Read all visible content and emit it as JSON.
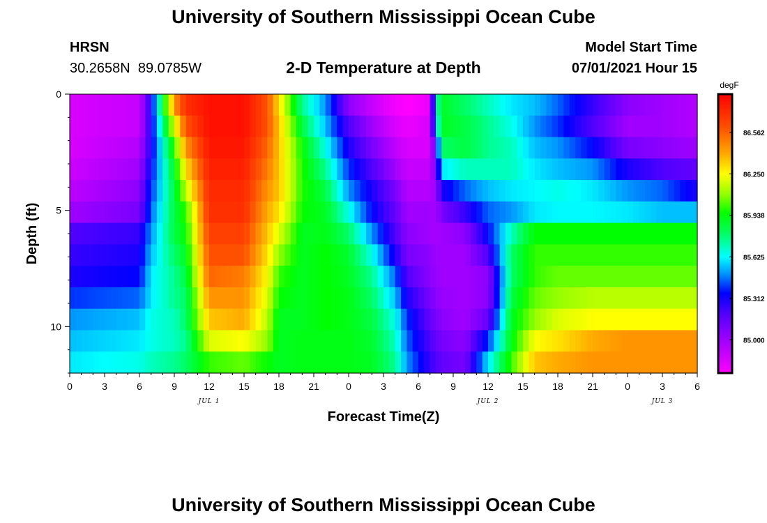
{
  "header": {
    "title_top": "University of Southern Mississippi Ocean Cube",
    "station": "HRSN",
    "coords": "30.2658N  89.0785W",
    "chart_title": "2-D Temperature at Depth",
    "model_label": "Model Start Time",
    "model_time": "07/01/2021 Hour 15",
    "title_bottom": "University of Southern Mississippi Ocean Cube"
  },
  "chart_data": {
    "type": "heatmap",
    "title": "2-D Temperature at Depth",
    "xlabel": "Forecast Time(Z)",
    "ylabel": "Depth (ft)",
    "x_range_hours": [
      0,
      54
    ],
    "y_range_ft": [
      0,
      12
    ],
    "x_ticks": [
      {
        "h": 0,
        "label": "0"
      },
      {
        "h": 3,
        "label": "3"
      },
      {
        "h": 6,
        "label": "6"
      },
      {
        "h": 9,
        "label": "9"
      },
      {
        "h": 12,
        "label": "12"
      },
      {
        "h": 15,
        "label": "15"
      },
      {
        "h": 18,
        "label": "18"
      },
      {
        "h": 21,
        "label": "21"
      },
      {
        "h": 24,
        "label": "0"
      },
      {
        "h": 27,
        "label": "3"
      },
      {
        "h": 30,
        "label": "6"
      },
      {
        "h": 33,
        "label": "9"
      },
      {
        "h": 36,
        "label": "12"
      },
      {
        "h": 39,
        "label": "15"
      },
      {
        "h": 42,
        "label": "18"
      },
      {
        "h": 45,
        "label": "21"
      },
      {
        "h": 48,
        "label": "0"
      },
      {
        "h": 51,
        "label": "3"
      },
      {
        "h": 54,
        "label": "6"
      }
    ],
    "date_labels": [
      {
        "h": 12,
        "label": "JUL 1"
      },
      {
        "h": 36,
        "label": "JUL 2"
      },
      {
        "h": 51,
        "label": "JUL 3"
      }
    ],
    "y_ticks": [
      {
        "v": 0,
        "label": "0"
      },
      {
        "v": 5,
        "label": "5"
      },
      {
        "v": 10,
        "label": "10"
      }
    ],
    "depths": [
      0,
      1,
      2,
      3,
      4,
      5,
      6,
      7,
      8,
      9,
      10,
      11,
      12
    ],
    "profiles": [
      {
        "h": 0,
        "t": [
          84.85,
          84.85,
          84.85,
          84.88,
          84.92,
          85.0,
          85.2,
          85.25,
          85.3,
          85.4,
          85.5,
          85.55,
          85.6
        ]
      },
      {
        "h": 6,
        "t": [
          84.9,
          84.9,
          84.95,
          85.0,
          85.05,
          85.1,
          85.25,
          85.3,
          85.35,
          85.45,
          85.55,
          85.6,
          85.65
        ]
      },
      {
        "h": 7,
        "t": [
          85.3,
          85.3,
          85.3,
          85.35,
          85.4,
          85.45,
          85.5,
          85.55,
          85.6,
          85.6,
          85.65,
          85.65,
          85.7
        ]
      },
      {
        "h": 9,
        "t": [
          86.45,
          86.2,
          86.0,
          85.9,
          85.85,
          85.85,
          85.85,
          85.8,
          85.75,
          85.75,
          85.7,
          85.7,
          85.75
        ]
      },
      {
        "h": 10,
        "t": [
          86.7,
          86.6,
          86.45,
          86.3,
          86.15,
          86.0,
          85.95,
          85.9,
          85.85,
          85.8,
          85.8,
          85.75,
          85.8
        ]
      },
      {
        "h": 12,
        "t": [
          86.8,
          86.8,
          86.78,
          86.75,
          86.72,
          86.7,
          86.65,
          86.6,
          86.55,
          86.45,
          86.35,
          86.2,
          86.0
        ]
      },
      {
        "h": 15,
        "t": [
          86.8,
          86.8,
          86.78,
          86.75,
          86.72,
          86.7,
          86.65,
          86.6,
          86.5,
          86.45,
          86.4,
          86.25,
          86.05
        ]
      },
      {
        "h": 17,
        "t": [
          86.6,
          86.6,
          86.55,
          86.5,
          86.45,
          86.4,
          86.35,
          86.3,
          86.25,
          86.2,
          86.15,
          86.1,
          85.95
        ]
      },
      {
        "h": 18,
        "t": [
          86.3,
          86.35,
          86.35,
          86.35,
          86.35,
          86.3,
          86.2,
          86.1,
          86.0,
          85.95,
          85.9,
          85.9,
          85.9
        ]
      },
      {
        "h": 20,
        "t": [
          85.75,
          85.85,
          85.95,
          85.98,
          85.98,
          85.95,
          85.9,
          85.9,
          85.9,
          85.9,
          85.9,
          85.92,
          85.92
        ]
      },
      {
        "h": 22,
        "t": [
          85.5,
          85.55,
          85.65,
          85.75,
          85.85,
          85.9,
          85.92,
          85.95,
          85.95,
          85.95,
          85.95,
          85.92,
          85.92
        ]
      },
      {
        "h": 24,
        "t": [
          85.05,
          85.2,
          85.3,
          85.4,
          85.5,
          85.65,
          85.8,
          85.88,
          85.9,
          85.92,
          85.92,
          85.92,
          85.92
        ]
      },
      {
        "h": 26,
        "t": [
          84.9,
          85.0,
          85.1,
          85.2,
          85.3,
          85.35,
          85.5,
          85.65,
          85.75,
          85.8,
          85.85,
          85.88,
          85.9
        ]
      },
      {
        "h": 28,
        "t": [
          84.78,
          84.85,
          84.92,
          85.0,
          85.1,
          85.15,
          85.2,
          85.3,
          85.45,
          85.55,
          85.65,
          85.7,
          85.75
        ]
      },
      {
        "h": 29,
        "t": [
          84.75,
          84.8,
          84.85,
          84.9,
          84.95,
          85.0,
          85.05,
          85.1,
          85.2,
          85.3,
          85.4,
          85.45,
          85.5
        ]
      },
      {
        "h": 31,
        "t": [
          84.8,
          84.85,
          84.85,
          84.9,
          84.95,
          85.0,
          85.0,
          85.05,
          85.05,
          85.1,
          85.15,
          85.2,
          85.25
        ]
      },
      {
        "h": 31.5,
        "t": [
          85.65,
          85.55,
          85.2,
          85.1,
          85.0,
          84.98,
          84.98,
          85.0,
          85.02,
          85.05,
          85.1,
          85.15,
          85.2
        ]
      },
      {
        "h": 32,
        "t": [
          85.9,
          85.9,
          85.8,
          85.6,
          85.3,
          85.1,
          85.0,
          85.0,
          85.0,
          85.02,
          85.05,
          85.1,
          85.15
        ]
      },
      {
        "h": 34,
        "t": [
          85.8,
          85.85,
          85.85,
          85.7,
          85.45,
          85.25,
          85.05,
          85.0,
          85.0,
          85.0,
          85.0,
          85.05,
          85.1
        ]
      },
      {
        "h": 36,
        "t": [
          85.7,
          85.75,
          85.75,
          85.7,
          85.55,
          85.45,
          85.35,
          85.2,
          85.05,
          85.05,
          85.15,
          85.4,
          85.6
        ]
      },
      {
        "h": 38,
        "t": [
          85.6,
          85.65,
          85.7,
          85.7,
          85.6,
          85.5,
          85.7,
          85.8,
          85.8,
          85.85,
          85.9,
          85.92,
          86.0
        ]
      },
      {
        "h": 40,
        "t": [
          85.55,
          85.5,
          85.55,
          85.6,
          85.62,
          85.6,
          85.95,
          86.0,
          86.0,
          86.05,
          86.1,
          86.25,
          86.35
        ]
      },
      {
        "h": 42,
        "t": [
          85.45,
          85.4,
          85.5,
          85.55,
          85.65,
          85.62,
          85.95,
          86.0,
          86.05,
          86.1,
          86.2,
          86.3,
          86.4
        ]
      },
      {
        "h": 45,
        "t": [
          85.25,
          85.2,
          85.35,
          85.5,
          85.6,
          85.62,
          85.95,
          86.0,
          86.05,
          86.15,
          86.25,
          86.4,
          86.45
        ]
      },
      {
        "h": 48,
        "t": [
          85.05,
          85.0,
          85.1,
          85.3,
          85.5,
          85.6,
          85.95,
          86.0,
          86.05,
          86.15,
          86.25,
          86.45,
          86.45
        ]
      },
      {
        "h": 51,
        "t": [
          85.0,
          85.0,
          85.05,
          85.2,
          85.45,
          85.55,
          85.95,
          86.0,
          86.05,
          86.15,
          86.25,
          86.45,
          86.45
        ]
      },
      {
        "h": 54,
        "t": [
          84.95,
          84.95,
          85.0,
          85.15,
          85.3,
          85.55,
          85.95,
          86.0,
          86.05,
          86.15,
          86.25,
          86.45,
          86.45
        ]
      }
    ],
    "colorbar": {
      "unit": "degF",
      "min": 84.75,
      "max": 86.85,
      "ticks": [
        85.0,
        85.312,
        85.625,
        85.938,
        86.25,
        86.562
      ],
      "tick_labels": [
        "85.000",
        "85.312",
        "85.625",
        "85.938",
        "86.250",
        "86.562"
      ],
      "stops": [
        {
          "v": 84.75,
          "c": "#ff00ff"
        },
        {
          "v": 85.0,
          "c": "#a000ff"
        },
        {
          "v": 85.2,
          "c": "#5000ff"
        },
        {
          "v": 85.35,
          "c": "#0000ff"
        },
        {
          "v": 85.5,
          "c": "#0096ff"
        },
        {
          "v": 85.625,
          "c": "#00ffff"
        },
        {
          "v": 85.8,
          "c": "#00ff64"
        },
        {
          "v": 85.95,
          "c": "#00ff00"
        },
        {
          "v": 86.1,
          "c": "#96ff00"
        },
        {
          "v": 86.25,
          "c": "#ffff00"
        },
        {
          "v": 86.4,
          "c": "#ffaa00"
        },
        {
          "v": 86.6,
          "c": "#ff5000"
        },
        {
          "v": 86.85,
          "c": "#ff0000"
        }
      ]
    }
  }
}
